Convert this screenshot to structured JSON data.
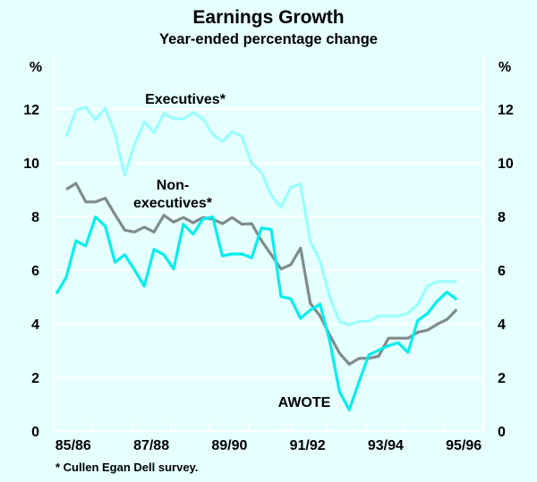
{
  "chart_data": {
    "type": "line",
    "title": "Earnings Growth",
    "subtitle": "Year-ended percentage change",
    "ylabel_left": "%",
    "ylabel_right": "%",
    "ylim": [
      0,
      12
    ],
    "yticks": [
      0,
      2,
      4,
      6,
      8,
      10,
      12
    ],
    "xlim": [
      0,
      11
    ],
    "x_unit": "financial years since start of 1985/86",
    "xtick_labels": [
      "85/86",
      "87/88",
      "89/90",
      "91/92",
      "93/94",
      "95/96"
    ],
    "grid": true,
    "footnote": "* Cullen Egan Dell survey.",
    "series": [
      {
        "name": "Executives*",
        "color": "#99ffff",
        "x_start": 0.32,
        "x_step": 0.25,
        "values": [
          10.97,
          11.96,
          12.07,
          11.6,
          12.04,
          11.07,
          9.53,
          10.68,
          11.53,
          11.12,
          11.84,
          11.64,
          11.64,
          11.87,
          11.64,
          11.07,
          10.79,
          11.16,
          10.98,
          9.98,
          9.64,
          8.79,
          8.34,
          9.09,
          9.2,
          7.07,
          6.34,
          5.01,
          4.07,
          3.96,
          4.09,
          4.09,
          4.29,
          4.29,
          4.29,
          4.4,
          4.71,
          5.4,
          5.57,
          5.57,
          5.57
        ]
      },
      {
        "name": "Non-executives*",
        "label_lines": [
          "Non-",
          "executives*"
        ],
        "color": "#808c8c",
        "x_start": 0.32,
        "x_step": 0.25,
        "values": [
          9.01,
          9.23,
          8.54,
          8.54,
          8.68,
          8.07,
          7.49,
          7.42,
          7.6,
          7.42,
          8.04,
          7.79,
          7.96,
          7.76,
          7.96,
          7.9,
          7.73,
          7.96,
          7.71,
          7.73,
          7.1,
          6.57,
          6.04,
          6.2,
          6.82,
          4.76,
          4.29,
          3.57,
          2.9,
          2.49,
          2.71,
          2.71,
          2.79,
          3.46,
          3.46,
          3.46,
          3.68,
          3.76,
          3.98,
          4.16,
          4.53
        ]
      },
      {
        "name": "AWOTE",
        "color": "#00eeee",
        "x_start": 0.07,
        "x_step": 0.25,
        "values": [
          5.12,
          5.73,
          7.09,
          6.9,
          7.98,
          7.64,
          6.29,
          6.57,
          6.01,
          5.4,
          6.77,
          6.57,
          6.04,
          7.71,
          7.34,
          7.9,
          7.98,
          6.53,
          6.6,
          6.6,
          6.46,
          7.57,
          7.51,
          5.01,
          4.93,
          4.2,
          4.51,
          4.73,
          3.34,
          1.46,
          0.79,
          1.84,
          2.84,
          3.01,
          3.18,
          3.29,
          2.93,
          4.12,
          4.38,
          4.84,
          5.18,
          4.9
        ]
      }
    ]
  }
}
